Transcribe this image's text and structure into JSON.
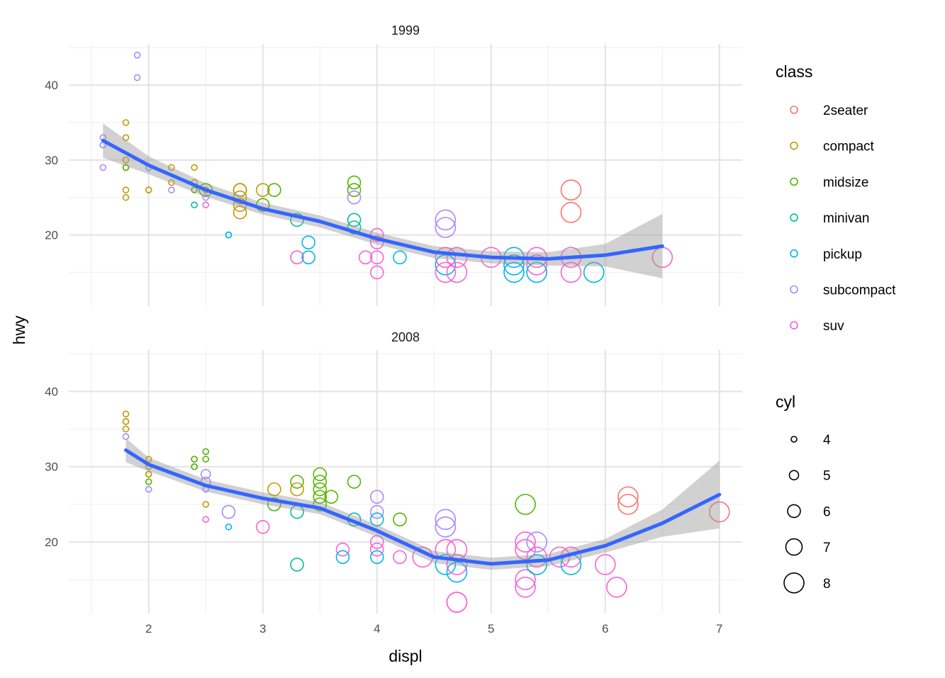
{
  "chart_data": {
    "type": "scatter",
    "xlabel": "displ",
    "ylabel": "hwy",
    "xlim": [
      1.3,
      7.2
    ],
    "ylim": [
      10.5,
      45.5
    ],
    "x_ticks": [
      2,
      3,
      4,
      5,
      6,
      7
    ],
    "y_ticks": [
      20,
      30,
      40
    ],
    "grid": true,
    "facets": [
      "1999",
      "2008"
    ],
    "legend_position": "right",
    "legend_class": {
      "title": "class",
      "entries": [
        {
          "label": "2seater",
          "color": "#F8766D"
        },
        {
          "label": "compact",
          "color": "#C49A00"
        },
        {
          "label": "midsize",
          "color": "#53B400"
        },
        {
          "label": "minivan",
          "color": "#00C094"
        },
        {
          "label": "pickup",
          "color": "#00B6EB"
        },
        {
          "label": "subcompact",
          "color": "#A58AFF"
        },
        {
          "label": "suv",
          "color": "#FB61D7"
        }
      ]
    },
    "legend_cyl": {
      "title": "cyl",
      "entries": [
        {
          "label": "4",
          "value": 4
        },
        {
          "label": "5",
          "value": 5
        },
        {
          "label": "6",
          "value": 6
        },
        {
          "label": "7",
          "value": 7
        },
        {
          "label": "8",
          "value": 8
        }
      ]
    },
    "smooth_color": "#3366FF",
    "band_color": "#999999",
    "panels": [
      {
        "year": "1999",
        "points": [
          [
            1.6,
            33,
            4,
            "subcompact"
          ],
          [
            1.6,
            32,
            4,
            "subcompact"
          ],
          [
            1.6,
            29,
            4,
            "subcompact"
          ],
          [
            1.6,
            32,
            4,
            "subcompact"
          ],
          [
            1.8,
            29,
            4,
            "compact"
          ],
          [
            1.8,
            29,
            4,
            "compact"
          ],
          [
            1.8,
            26,
            4,
            "compact"
          ],
          [
            1.8,
            25,
            4,
            "compact"
          ],
          [
            1.8,
            35,
            4,
            "compact"
          ],
          [
            1.8,
            33,
            4,
            "compact"
          ],
          [
            1.8,
            30,
            4,
            "compact"
          ],
          [
            1.8,
            29,
            4,
            "midsize"
          ],
          [
            1.9,
            44,
            4,
            "subcompact"
          ],
          [
            1.9,
            41,
            4,
            "subcompact"
          ],
          [
            2.0,
            29,
            4,
            "subcompact"
          ],
          [
            2.0,
            26,
            4,
            "subcompact"
          ],
          [
            2.0,
            26,
            4,
            "compact"
          ],
          [
            2.2,
            29,
            4,
            "compact"
          ],
          [
            2.2,
            27,
            4,
            "compact"
          ],
          [
            2.2,
            26,
            4,
            "subcompact"
          ],
          [
            2.4,
            29,
            4,
            "compact"
          ],
          [
            2.4,
            27,
            4,
            "compact"
          ],
          [
            2.4,
            24,
            4,
            "minivan"
          ],
          [
            2.4,
            26,
            4,
            "midsize"
          ],
          [
            2.5,
            26,
            6,
            "midsize"
          ],
          [
            2.5,
            25,
            4,
            "subcompact"
          ],
          [
            2.5,
            24,
            4,
            "suv"
          ],
          [
            2.5,
            26,
            4,
            "compact"
          ],
          [
            2.7,
            20,
            4,
            "pickup"
          ],
          [
            2.7,
            20,
            4,
            "pickup"
          ],
          [
            2.8,
            26,
            6,
            "midsize"
          ],
          [
            2.8,
            25,
            6,
            "compact"
          ],
          [
            2.8,
            24,
            6,
            "compact"
          ],
          [
            2.8,
            23,
            6,
            "compact"
          ],
          [
            2.8,
            26,
            6,
            "compact"
          ],
          [
            3.0,
            26,
            6,
            "compact"
          ],
          [
            3.0,
            24,
            6,
            "midsize"
          ],
          [
            3.1,
            26,
            6,
            "midsize"
          ],
          [
            3.3,
            22,
            6,
            "minivan"
          ],
          [
            3.3,
            17,
            6,
            "suv"
          ],
          [
            3.4,
            19,
            6,
            "pickup"
          ],
          [
            3.4,
            17,
            6,
            "pickup"
          ],
          [
            3.8,
            27,
            6,
            "midsize"
          ],
          [
            3.8,
            26,
            6,
            "midsize"
          ],
          [
            3.8,
            25,
            6,
            "subcompact"
          ],
          [
            3.8,
            22,
            6,
            "minivan"
          ],
          [
            3.8,
            21,
            6,
            "minivan"
          ],
          [
            3.9,
            17,
            6,
            "suv"
          ],
          [
            4.0,
            20,
            6,
            "suv"
          ],
          [
            4.0,
            19,
            6,
            "suv"
          ],
          [
            4.0,
            17,
            6,
            "suv"
          ],
          [
            4.0,
            15,
            6,
            "suv"
          ],
          [
            4.2,
            17,
            6,
            "pickup"
          ],
          [
            4.6,
            22,
            8,
            "subcompact"
          ],
          [
            4.6,
            21,
            8,
            "subcompact"
          ],
          [
            4.6,
            17,
            8,
            "suv"
          ],
          [
            4.6,
            16,
            8,
            "pickup"
          ],
          [
            4.6,
            15,
            8,
            "suv"
          ],
          [
            4.7,
            17,
            8,
            "suv"
          ],
          [
            4.7,
            15,
            8,
            "suv"
          ],
          [
            5.0,
            17,
            8,
            "suv"
          ],
          [
            5.2,
            17,
            8,
            "pickup"
          ],
          [
            5.2,
            16,
            8,
            "pickup"
          ],
          [
            5.2,
            15,
            8,
            "pickup"
          ],
          [
            5.4,
            17,
            8,
            "suv"
          ],
          [
            5.4,
            16,
            8,
            "suv"
          ],
          [
            5.4,
            15,
            8,
            "pickup"
          ],
          [
            5.7,
            26,
            8,
            "2seater"
          ],
          [
            5.7,
            23,
            8,
            "2seater"
          ],
          [
            5.7,
            17,
            8,
            "suv"
          ],
          [
            5.7,
            15,
            8,
            "suv"
          ],
          [
            5.9,
            15,
            8,
            "pickup"
          ],
          [
            6.5,
            17,
            8,
            "suv"
          ]
        ],
        "smooth": [
          [
            1.6,
            32.6
          ],
          [
            2.0,
            29.3
          ],
          [
            2.5,
            26.0
          ],
          [
            3.0,
            23.5
          ],
          [
            3.5,
            21.8
          ],
          [
            4.0,
            19.5
          ],
          [
            4.5,
            17.7
          ],
          [
            5.0,
            17.0
          ],
          [
            5.5,
            16.8
          ],
          [
            6.0,
            17.3
          ],
          [
            6.5,
            18.5
          ]
        ],
        "band_half_width": [
          2.3,
          1.2,
          0.9,
          0.8,
          0.8,
          0.8,
          0.8,
          0.8,
          0.9,
          1.5,
          4.3
        ]
      },
      {
        "year": "2008",
        "points": [
          [
            1.8,
            37,
            4,
            "compact"
          ],
          [
            1.8,
            36,
            4,
            "subcompact"
          ],
          [
            1.8,
            35,
            4,
            "compact"
          ],
          [
            1.8,
            34,
            4,
            "subcompact"
          ],
          [
            1.8,
            36,
            4,
            "compact"
          ],
          [
            2.0,
            31,
            4,
            "compact"
          ],
          [
            2.0,
            30,
            4,
            "compact"
          ],
          [
            2.0,
            29,
            4,
            "midsize"
          ],
          [
            2.0,
            28,
            4,
            "midsize"
          ],
          [
            2.0,
            27,
            4,
            "subcompact"
          ],
          [
            2.0,
            29,
            4,
            "compact"
          ],
          [
            2.4,
            31,
            4,
            "compact"
          ],
          [
            2.4,
            30,
            4,
            "minivan"
          ],
          [
            2.4,
            31,
            4,
            "midsize"
          ],
          [
            2.4,
            30,
            4,
            "midsize"
          ],
          [
            2.5,
            32,
            4,
            "midsize"
          ],
          [
            2.5,
            31,
            4,
            "midsize"
          ],
          [
            2.5,
            29,
            5,
            "subcompact"
          ],
          [
            2.5,
            28,
            5,
            "subcompact"
          ],
          [
            2.5,
            27,
            4,
            "subcompact"
          ],
          [
            2.5,
            25,
            4,
            "compact"
          ],
          [
            2.5,
            23,
            4,
            "suv"
          ],
          [
            2.7,
            24,
            6,
            "subcompact"
          ],
          [
            2.7,
            22,
            4,
            "pickup"
          ],
          [
            3.0,
            22,
            6,
            "suv"
          ],
          [
            3.1,
            27,
            6,
            "compact"
          ],
          [
            3.1,
            25,
            6,
            "midsize"
          ],
          [
            3.3,
            28,
            6,
            "midsize"
          ],
          [
            3.3,
            27,
            6,
            "compact"
          ],
          [
            3.3,
            24,
            6,
            "minivan"
          ],
          [
            3.3,
            17,
            6,
            "minivan"
          ],
          [
            3.5,
            29,
            6,
            "midsize"
          ],
          [
            3.5,
            28,
            6,
            "midsize"
          ],
          [
            3.5,
            27,
            6,
            "midsize"
          ],
          [
            3.5,
            26,
            6,
            "midsize"
          ],
          [
            3.5,
            25,
            6,
            "midsize"
          ],
          [
            3.6,
            26,
            6,
            "midsize"
          ],
          [
            3.7,
            19,
            6,
            "suv"
          ],
          [
            3.7,
            18,
            6,
            "pickup"
          ],
          [
            3.8,
            28,
            6,
            "midsize"
          ],
          [
            3.8,
            23,
            6,
            "minivan"
          ],
          [
            4.0,
            26,
            6,
            "subcompact"
          ],
          [
            4.0,
            24,
            6,
            "subcompact"
          ],
          [
            4.0,
            23,
            6,
            "pickup"
          ],
          [
            4.0,
            20,
            6,
            "suv"
          ],
          [
            4.0,
            19,
            6,
            "suv"
          ],
          [
            4.0,
            18,
            6,
            "pickup"
          ],
          [
            4.2,
            23,
            6,
            "midsize"
          ],
          [
            4.2,
            18,
            6,
            "suv"
          ],
          [
            4.4,
            18,
            8,
            "suv"
          ],
          [
            4.6,
            23,
            8,
            "subcompact"
          ],
          [
            4.6,
            22,
            8,
            "subcompact"
          ],
          [
            4.6,
            19,
            8,
            "suv"
          ],
          [
            4.6,
            17,
            8,
            "pickup"
          ],
          [
            4.7,
            19,
            8,
            "suv"
          ],
          [
            4.7,
            17,
            8,
            "suv"
          ],
          [
            4.7,
            16,
            8,
            "pickup"
          ],
          [
            4.7,
            12,
            8,
            "suv"
          ],
          [
            4.7,
            12,
            8,
            "suv"
          ],
          [
            5.3,
            25,
            8,
            "midsize"
          ],
          [
            5.3,
            20,
            8,
            "suv"
          ],
          [
            5.3,
            19,
            8,
            "suv"
          ],
          [
            5.3,
            15,
            8,
            "suv"
          ],
          [
            5.3,
            14,
            8,
            "suv"
          ],
          [
            5.4,
            20,
            8,
            "subcompact"
          ],
          [
            5.4,
            18,
            8,
            "suv"
          ],
          [
            5.4,
            17,
            8,
            "pickup"
          ],
          [
            5.6,
            18,
            8,
            "suv"
          ],
          [
            5.7,
            18,
            8,
            "suv"
          ],
          [
            5.7,
            17,
            8,
            "pickup"
          ],
          [
            6.0,
            17,
            8,
            "suv"
          ],
          [
            6.1,
            14,
            8,
            "suv"
          ],
          [
            6.2,
            26,
            8,
            "2seater"
          ],
          [
            6.2,
            25,
            8,
            "2seater"
          ],
          [
            7.0,
            24,
            8,
            "2seater"
          ]
        ],
        "smooth": [
          [
            1.8,
            32.2
          ],
          [
            2.0,
            30.3
          ],
          [
            2.5,
            27.5
          ],
          [
            3.0,
            25.8
          ],
          [
            3.5,
            24.5
          ],
          [
            4.0,
            21.5
          ],
          [
            4.5,
            18.0
          ],
          [
            5.0,
            17.1
          ],
          [
            5.5,
            17.6
          ],
          [
            6.0,
            19.5
          ],
          [
            6.5,
            22.5
          ],
          [
            7.0,
            26.3
          ]
        ],
        "band_half_width": [
          1.6,
          0.9,
          0.8,
          0.8,
          0.8,
          0.8,
          0.8,
          0.8,
          0.8,
          0.9,
          1.8,
          4.5
        ]
      }
    ]
  }
}
